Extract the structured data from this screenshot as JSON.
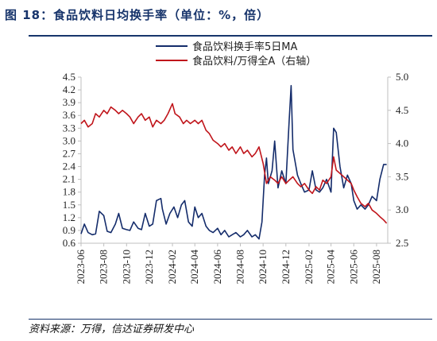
{
  "title": "图 18：食品饮料日均换手率（单位：%，倍）",
  "source": "资料来源：万得，信达证券研发中心",
  "colors": {
    "navy": "#142c6b",
    "red": "#c0151b",
    "axis": "#bfbfbf"
  },
  "chart_data": {
    "type": "line",
    "x_ticks": [
      "2023-06",
      "2023-08",
      "2023-10",
      "2023-12",
      "2024-02",
      "2024-04",
      "2024-06",
      "2024-08",
      "2024-10",
      "2024-12",
      "2025-02",
      "2025-04",
      "2025-06",
      "2025-08"
    ],
    "y_left": {
      "range": [
        0.6,
        4.5
      ],
      "ticks": [
        "4.5",
        "4.2",
        "3.9",
        "3.6",
        "3.3",
        "3.0",
        "2.7",
        "2.4",
        "2.1",
        "1.8",
        "1.5",
        "1.2",
        "0.9",
        "0.6"
      ]
    },
    "y_right": {
      "range": [
        2.5,
        5.0
      ],
      "ticks": [
        "5.0",
        "4.5",
        "4.0",
        "3.5",
        "3.0",
        "2.5"
      ]
    },
    "series": [
      {
        "name": "食品饮料换手率5日MA",
        "axis": "left",
        "color": "#142c6b",
        "points": [
          [
            "2023-06-01",
            0.82
          ],
          [
            "2023-06-10",
            1.05
          ],
          [
            "2023-06-20",
            0.85
          ],
          [
            "2023-07-01",
            0.8
          ],
          [
            "2023-07-10",
            0.82
          ],
          [
            "2023-07-20",
            1.35
          ],
          [
            "2023-08-01",
            1.25
          ],
          [
            "2023-08-10",
            0.88
          ],
          [
            "2023-08-20",
            0.85
          ],
          [
            "2023-09-01",
            1.05
          ],
          [
            "2023-09-10",
            1.3
          ],
          [
            "2023-09-20",
            0.95
          ],
          [
            "2023-10-01",
            0.92
          ],
          [
            "2023-10-10",
            0.9
          ],
          [
            "2023-10-20",
            1.1
          ],
          [
            "2023-11-01",
            0.95
          ],
          [
            "2023-11-10",
            0.92
          ],
          [
            "2023-11-20",
            1.3
          ],
          [
            "2023-12-01",
            1.0
          ],
          [
            "2023-12-10",
            1.05
          ],
          [
            "2023-12-20",
            1.6
          ],
          [
            "2024-01-01",
            1.65
          ],
          [
            "2024-01-05",
            1.4
          ],
          [
            "2024-01-15",
            1.05
          ],
          [
            "2024-01-25",
            1.3
          ],
          [
            "2024-02-05",
            1.45
          ],
          [
            "2024-02-15",
            1.2
          ],
          [
            "2024-02-25",
            1.5
          ],
          [
            "2024-03-05",
            1.6
          ],
          [
            "2024-03-15",
            1.1
          ],
          [
            "2024-03-25",
            1.0
          ],
          [
            "2024-04-01",
            1.45
          ],
          [
            "2024-04-10",
            1.2
          ],
          [
            "2024-04-20",
            1.3
          ],
          [
            "2024-05-01",
            1.0
          ],
          [
            "2024-05-10",
            0.9
          ],
          [
            "2024-05-20",
            0.85
          ],
          [
            "2024-06-01",
            0.95
          ],
          [
            "2024-06-10",
            0.8
          ],
          [
            "2024-06-20",
            0.9
          ],
          [
            "2024-07-01",
            0.75
          ],
          [
            "2024-07-10",
            0.8
          ],
          [
            "2024-07-20",
            0.85
          ],
          [
            "2024-08-01",
            0.75
          ],
          [
            "2024-08-10",
            0.8
          ],
          [
            "2024-08-20",
            0.9
          ],
          [
            "2024-09-01",
            0.75
          ],
          [
            "2024-09-10",
            0.8
          ],
          [
            "2024-09-20",
            0.7
          ],
          [
            "2024-09-28",
            1.1
          ],
          [
            "2024-10-05",
            2.2
          ],
          [
            "2024-10-10",
            2.6
          ],
          [
            "2024-10-15",
            2.0
          ],
          [
            "2024-10-25",
            2.3
          ],
          [
            "2024-11-01",
            3.0
          ],
          [
            "2024-11-10",
            1.9
          ],
          [
            "2024-11-20",
            2.3
          ],
          [
            "2024-12-01",
            2.0
          ],
          [
            "2024-12-10",
            3.5
          ],
          [
            "2024-12-15",
            4.3
          ],
          [
            "2024-12-20",
            2.8
          ],
          [
            "2025-01-01",
            2.2
          ],
          [
            "2025-01-10",
            2.0
          ],
          [
            "2025-01-20",
            1.8
          ],
          [
            "2025-02-01",
            1.85
          ],
          [
            "2025-02-10",
            2.3
          ],
          [
            "2025-02-20",
            1.85
          ],
          [
            "2025-03-01",
            1.8
          ],
          [
            "2025-03-10",
            1.9
          ],
          [
            "2025-03-20",
            2.1
          ],
          [
            "2025-04-01",
            1.8
          ],
          [
            "2025-04-08",
            3.3
          ],
          [
            "2025-04-15",
            3.2
          ],
          [
            "2025-04-25",
            2.4
          ],
          [
            "2025-05-05",
            1.9
          ],
          [
            "2025-05-15",
            2.2
          ],
          [
            "2025-05-25",
            2.0
          ],
          [
            "2025-06-01",
            1.6
          ],
          [
            "2025-06-10",
            1.4
          ],
          [
            "2025-06-20",
            1.5
          ],
          [
            "2025-07-01",
            1.4
          ],
          [
            "2025-07-10",
            1.5
          ],
          [
            "2025-07-20",
            1.7
          ],
          [
            "2025-08-01",
            1.6
          ],
          [
            "2025-08-10",
            2.1
          ],
          [
            "2025-08-20",
            2.45
          ],
          [
            "2025-08-28",
            2.45
          ]
        ]
      },
      {
        "name": "食品饮料/万得全A（右轴）",
        "axis": "right",
        "color": "#c0151b",
        "points": [
          [
            "2023-06-01",
            4.3
          ],
          [
            "2023-06-10",
            4.35
          ],
          [
            "2023-06-20",
            4.25
          ],
          [
            "2023-07-01",
            4.3
          ],
          [
            "2023-07-10",
            4.45
          ],
          [
            "2023-07-20",
            4.4
          ],
          [
            "2023-08-01",
            4.5
          ],
          [
            "2023-08-10",
            4.45
          ],
          [
            "2023-08-20",
            4.55
          ],
          [
            "2023-09-01",
            4.5
          ],
          [
            "2023-09-10",
            4.45
          ],
          [
            "2023-09-20",
            4.5
          ],
          [
            "2023-10-01",
            4.45
          ],
          [
            "2023-10-10",
            4.4
          ],
          [
            "2023-10-20",
            4.3
          ],
          [
            "2023-11-01",
            4.4
          ],
          [
            "2023-11-10",
            4.45
          ],
          [
            "2023-11-20",
            4.35
          ],
          [
            "2023-12-01",
            4.4
          ],
          [
            "2023-12-10",
            4.25
          ],
          [
            "2023-12-20",
            4.35
          ],
          [
            "2024-01-01",
            4.3
          ],
          [
            "2024-01-10",
            4.35
          ],
          [
            "2024-01-20",
            4.45
          ],
          [
            "2024-02-01",
            4.6
          ],
          [
            "2024-02-08",
            4.45
          ],
          [
            "2024-02-20",
            4.4
          ],
          [
            "2024-03-01",
            4.3
          ],
          [
            "2024-03-10",
            4.35
          ],
          [
            "2024-03-20",
            4.3
          ],
          [
            "2024-04-01",
            4.35
          ],
          [
            "2024-04-10",
            4.3
          ],
          [
            "2024-04-20",
            4.35
          ],
          [
            "2024-05-01",
            4.2
          ],
          [
            "2024-05-10",
            4.15
          ],
          [
            "2024-05-20",
            4.05
          ],
          [
            "2024-06-01",
            4.0
          ],
          [
            "2024-06-10",
            3.95
          ],
          [
            "2024-06-20",
            4.0
          ],
          [
            "2024-07-01",
            3.9
          ],
          [
            "2024-07-10",
            3.95
          ],
          [
            "2024-07-20",
            3.85
          ],
          [
            "2024-08-01",
            3.95
          ],
          [
            "2024-08-10",
            3.85
          ],
          [
            "2024-08-20",
            3.9
          ],
          [
            "2024-09-01",
            3.8
          ],
          [
            "2024-09-10",
            3.85
          ],
          [
            "2024-09-20",
            3.95
          ],
          [
            "2024-10-01",
            3.7
          ],
          [
            "2024-10-10",
            3.4
          ],
          [
            "2024-10-20",
            3.5
          ],
          [
            "2024-11-01",
            3.45
          ],
          [
            "2024-11-10",
            3.4
          ],
          [
            "2024-11-20",
            3.5
          ],
          [
            "2024-12-01",
            3.4
          ],
          [
            "2024-12-10",
            3.45
          ],
          [
            "2024-12-20",
            3.5
          ],
          [
            "2025-01-01",
            3.4
          ],
          [
            "2025-01-10",
            3.35
          ],
          [
            "2025-01-20",
            3.4
          ],
          [
            "2025-02-01",
            3.3
          ],
          [
            "2025-02-10",
            3.25
          ],
          [
            "2025-02-20",
            3.35
          ],
          [
            "2025-03-01",
            3.3
          ],
          [
            "2025-03-10",
            3.45
          ],
          [
            "2025-03-20",
            3.4
          ],
          [
            "2025-04-01",
            3.5
          ],
          [
            "2025-04-08",
            3.8
          ],
          [
            "2025-04-15",
            3.6
          ],
          [
            "2025-04-25",
            3.55
          ],
          [
            "2025-05-05",
            3.5
          ],
          [
            "2025-05-15",
            3.45
          ],
          [
            "2025-05-25",
            3.4
          ],
          [
            "2025-06-01",
            3.3
          ],
          [
            "2025-06-10",
            3.2
          ],
          [
            "2025-06-20",
            3.1
          ],
          [
            "2025-07-01",
            3.05
          ],
          [
            "2025-07-10",
            3.1
          ],
          [
            "2025-07-20",
            3.0
          ],
          [
            "2025-08-01",
            2.95
          ],
          [
            "2025-08-10",
            2.9
          ],
          [
            "2025-08-20",
            2.85
          ],
          [
            "2025-08-28",
            2.8
          ]
        ]
      }
    ]
  }
}
